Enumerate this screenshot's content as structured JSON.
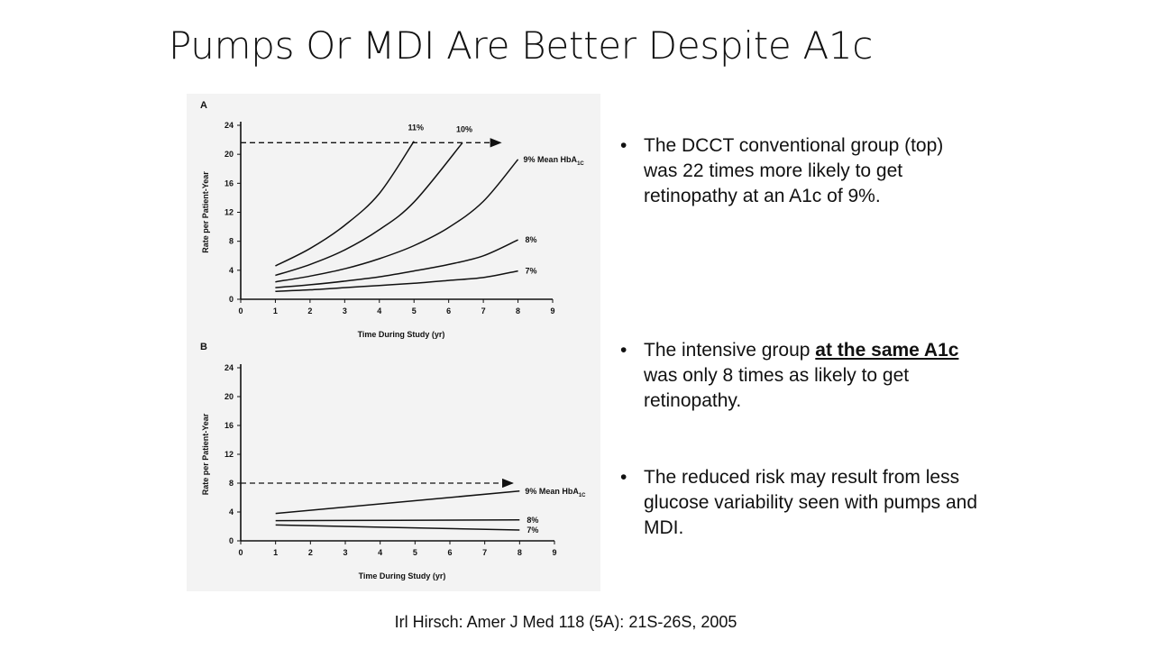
{
  "slide": {
    "title": "Pumps Or MDI Are Better Despite A1c",
    "citation": "Irl Hirsch: Amer J Med 118 (5A): 21S-26S, 2005"
  },
  "bullets": [
    {
      "bullet_char": "•",
      "parts": [
        "The DCCT conventional group (top) was 22 times more likely to get retinopathy at an A1c of 9%.",
        "",
        ""
      ]
    },
    {
      "bullet_char": "•",
      "parts": [
        "The intensive group ",
        "at the same A1c",
        " was only 8 times as likely to get retinopathy."
      ]
    },
    {
      "bullet_char": "•",
      "parts": [
        "The reduced risk may result from less glucose variability seen with pumps and MDI.",
        "",
        ""
      ]
    }
  ],
  "chart_data": [
    {
      "type": "line",
      "panel_label": "A",
      "xlabel": "Time During Study (yr)",
      "ylabel": "Rate per Patient-Year",
      "xlim": [
        0,
        9
      ],
      "ylim": [
        0,
        24
      ],
      "x_ticks": [
        0,
        1,
        2,
        3,
        4,
        5,
        6,
        7,
        8,
        9
      ],
      "y_ticks": [
        0,
        4,
        8,
        12,
        16,
        20,
        24
      ],
      "grid": false,
      "legend": "none",
      "series": [
        {
          "name": "11%",
          "label_pos": "top",
          "points": [
            [
              1,
              4.6
            ],
            [
              2,
              7.0
            ],
            [
              3,
              10.2
            ],
            [
              4,
              14.6
            ],
            [
              5,
              21.8
            ]
          ]
        },
        {
          "name": "10%",
          "label_pos": "top",
          "points": [
            [
              1,
              3.3
            ],
            [
              2,
              4.8
            ],
            [
              3,
              6.8
            ],
            [
              4,
              9.6
            ],
            [
              5,
              13.4
            ],
            [
              6.4,
              21.6
            ]
          ]
        },
        {
          "name": "9%",
          "label_pos": "end",
          "points": [
            [
              1,
              2.4
            ],
            [
              2,
              3.2
            ],
            [
              3,
              4.2
            ],
            [
              4,
              5.6
            ],
            [
              5,
              7.4
            ],
            [
              6,
              9.9
            ],
            [
              7,
              13.5
            ],
            [
              8,
              19.3
            ]
          ]
        },
        {
          "name": "8%",
          "label_pos": "end",
          "points": [
            [
              1,
              1.6
            ],
            [
              2,
              2.0
            ],
            [
              3,
              2.5
            ],
            [
              4,
              3.1
            ],
            [
              5,
              3.9
            ],
            [
              6,
              4.8
            ],
            [
              7,
              6.0
            ],
            [
              8,
              8.2
            ]
          ]
        },
        {
          "name": "7%",
          "label_pos": "end",
          "points": [
            [
              1,
              1.1
            ],
            [
              2,
              1.3
            ],
            [
              3,
              1.6
            ],
            [
              4,
              1.9
            ],
            [
              5,
              2.2
            ],
            [
              6,
              2.6
            ],
            [
              7,
              3.0
            ],
            [
              8,
              3.9
            ]
          ]
        }
      ],
      "annotations": [
        {
          "text": "9% Mean HbA",
          "subscript": "1C"
        },
        {
          "type": "dashed-arrow",
          "y": 21.6,
          "x_from": 0,
          "x_to": 7.5
        }
      ]
    },
    {
      "type": "line",
      "panel_label": "B",
      "xlabel": "Time During Study (yr)",
      "ylabel": "Rate per Patient-Year",
      "xlim": [
        0,
        9
      ],
      "ylim": [
        0,
        24
      ],
      "x_ticks": [
        0,
        1,
        2,
        3,
        4,
        5,
        6,
        7,
        8,
        9
      ],
      "y_ticks": [
        0,
        4,
        8,
        12,
        16,
        20,
        24
      ],
      "grid": false,
      "legend": "none",
      "series": [
        {
          "name": "9%",
          "label_pos": "end",
          "points": [
            [
              1,
              3.8
            ],
            [
              8,
              6.9
            ]
          ]
        },
        {
          "name": "8%",
          "label_pos": "end",
          "points": [
            [
              1,
              2.8
            ],
            [
              8,
              2.9
            ]
          ]
        },
        {
          "name": "7%",
          "label_pos": "end",
          "points": [
            [
              1,
              2.2
            ],
            [
              8,
              1.5
            ]
          ]
        }
      ],
      "annotations": [
        {
          "text": "9% Mean HbA",
          "subscript": "1C"
        },
        {
          "type": "dashed-arrow",
          "y": 8,
          "x_from": 0,
          "x_to": 7.8
        }
      ]
    }
  ]
}
